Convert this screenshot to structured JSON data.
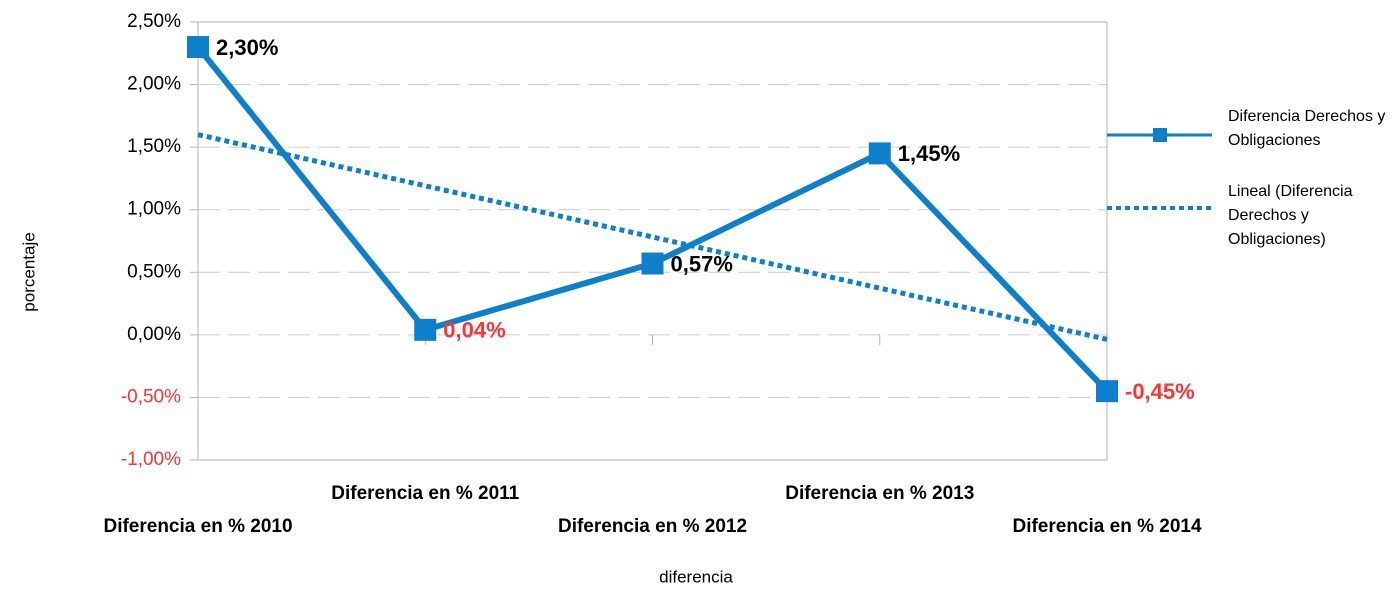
{
  "chart_data": {
    "type": "line",
    "categories": [
      "Diferencia en % 2010",
      "Diferencia en % 2011",
      "Diferencia en % 2012",
      "Diferencia en % 2013",
      "Diferencia en % 2014"
    ],
    "series": [
      {
        "name": "Diferencia Derechos y Obligaciones",
        "color": "#0e7fcb",
        "style": "solid",
        "marker": "square",
        "values": [
          2.3,
          0.04,
          0.57,
          1.45,
          -0.45
        ],
        "value_labels": [
          "2,30%",
          "0,04%",
          "0,57%",
          "1,45%",
          "-0,45%"
        ],
        "value_label_colors": [
          "#000000",
          "#ff3333",
          "#000000",
          "#000000",
          "#ff3333"
        ]
      },
      {
        "name": "Lineal (Diferencia Derechos y Obligaciones)",
        "color": "#0e7fcb",
        "style": "dotted",
        "values": [
          1.6,
          1.191,
          0.782,
          0.373,
          -0.036
        ]
      }
    ],
    "ylim": [
      -1,
      2.5
    ],
    "yticks": [
      {
        "value": -1,
        "label": "-1,00%"
      },
      {
        "value": -0.5,
        "label": "-0,50%"
      },
      {
        "value": 0,
        "label": "0,00%"
      },
      {
        "value": 0.5,
        "label": "0,50%"
      },
      {
        "value": 1,
        "label": "1,00%"
      },
      {
        "value": 1.5,
        "label": "1,50%"
      },
      {
        "value": 2,
        "label": "2,00%"
      },
      {
        "value": 2.5,
        "label": "2,50%"
      }
    ],
    "negative_color": "#ff3333",
    "xlabel": "diferencia",
    "ylabel": "porcentaje",
    "grid": true,
    "legend": "right"
  }
}
